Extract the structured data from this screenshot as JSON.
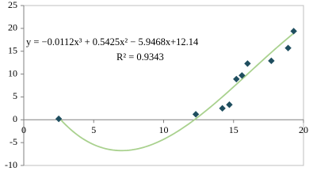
{
  "chart_data": {
    "type": "scatter",
    "x": [
      2.5,
      12.3,
      14.2,
      14.7,
      15.2,
      15.6,
      16.0,
      17.7,
      18.9,
      19.3
    ],
    "values": [
      0.2,
      1.2,
      2.5,
      3.3,
      8.9,
      9.7,
      12.3,
      12.9,
      15.7,
      19.4
    ],
    "color": "#1f4e5f",
    "trendline": {
      "equation": "y = −0.0112x³ + 0.5425x² − 5.9468x+12.14",
      "r_squared": "R² = 0.9343",
      "coefficients": [
        -0.0112,
        0.5425,
        -5.9468,
        12.14
      ],
      "color": "#a9d18e"
    },
    "xlim": [
      0,
      20
    ],
    "xticks": [
      0,
      5,
      10,
      15,
      20
    ],
    "ylim": [
      -10,
      25
    ],
    "yticks": [
      -10,
      -5,
      0,
      5,
      10,
      15,
      20,
      25
    ]
  }
}
